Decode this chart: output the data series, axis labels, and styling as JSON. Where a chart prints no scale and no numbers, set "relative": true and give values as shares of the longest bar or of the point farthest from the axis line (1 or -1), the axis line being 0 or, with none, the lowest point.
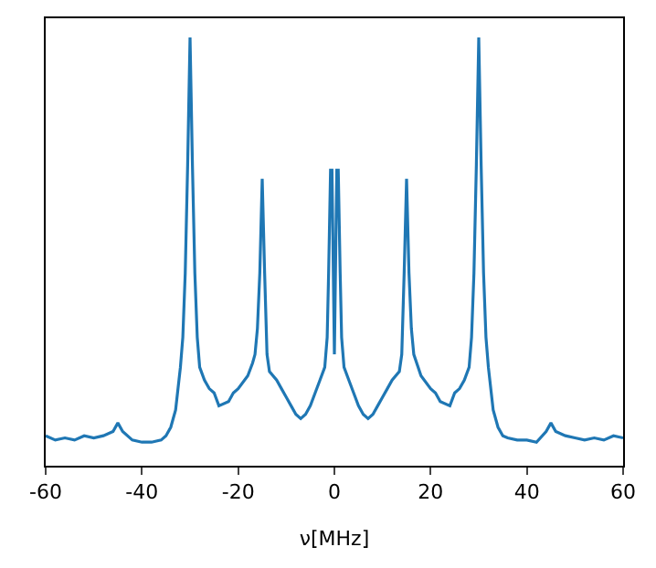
{
  "chart_data": {
    "type": "line",
    "xlabel": "ν[MHz]",
    "relative": true,
    "xlim": [
      -60,
      60
    ],
    "xticks": [
      -60,
      -40,
      -20,
      0,
      20,
      40,
      60
    ],
    "tick_labels": "x",
    "x": [
      -60,
      -58,
      -56,
      -54,
      -52,
      -50,
      -48,
      -46,
      -45,
      -44,
      -42,
      -40,
      -38,
      -36,
      -35,
      -34,
      -33,
      -32,
      -31.5,
      -31,
      -30.5,
      -30,
      -29.5,
      -29,
      -28.5,
      -28,
      -27,
      -26,
      -25,
      -24,
      -22,
      -21,
      -20,
      -18,
      -17,
      -16.5,
      -16,
      -15.5,
      -15,
      -14.5,
      -14,
      -13.5,
      -12,
      -11,
      -10,
      -9,
      -8,
      -7,
      -6,
      -5,
      -4,
      -3,
      -2,
      -1.5,
      -1.2,
      -0.8,
      -0.5,
      0,
      0.5,
      0.8,
      1.2,
      1.5,
      2,
      3,
      4,
      5,
      6,
      7,
      8,
      9,
      10,
      11,
      12,
      13.5,
      14,
      14.5,
      15,
      15.5,
      16,
      16.5,
      18,
      20,
      21,
      22,
      24,
      25,
      26,
      27,
      28,
      28.5,
      29,
      29.5,
      30,
      30.5,
      31,
      31.5,
      32,
      33,
      34,
      35,
      36,
      38,
      40,
      42,
      44,
      45,
      46,
      48,
      50,
      52,
      54,
      56,
      58,
      60
    ],
    "series": [
      {
        "color": "#1f77b4",
        "values": [
          0.07,
          0.06,
          0.065,
          0.06,
          0.07,
          0.065,
          0.07,
          0.08,
          0.1,
          0.08,
          0.06,
          0.055,
          0.055,
          0.06,
          0.07,
          0.09,
          0.13,
          0.23,
          0.3,
          0.45,
          0.7,
          1.0,
          0.7,
          0.45,
          0.3,
          0.23,
          0.2,
          0.18,
          0.17,
          0.14,
          0.15,
          0.17,
          0.18,
          0.21,
          0.24,
          0.26,
          0.32,
          0.45,
          0.67,
          0.45,
          0.26,
          0.22,
          0.2,
          0.18,
          0.16,
          0.14,
          0.12,
          0.11,
          0.12,
          0.14,
          0.17,
          0.2,
          0.23,
          0.3,
          0.45,
          0.69,
          0.69,
          0.26,
          0.69,
          0.69,
          0.45,
          0.3,
          0.23,
          0.2,
          0.17,
          0.14,
          0.12,
          0.11,
          0.12,
          0.14,
          0.16,
          0.18,
          0.2,
          0.22,
          0.26,
          0.45,
          0.67,
          0.45,
          0.32,
          0.26,
          0.21,
          0.18,
          0.17,
          0.15,
          0.14,
          0.17,
          0.18,
          0.2,
          0.23,
          0.3,
          0.45,
          0.7,
          1.0,
          0.7,
          0.45,
          0.3,
          0.23,
          0.13,
          0.09,
          0.07,
          0.065,
          0.06,
          0.06,
          0.055,
          0.08,
          0.1,
          0.08,
          0.07,
          0.065,
          0.06,
          0.065,
          0.06,
          0.07,
          0.065
        ]
      }
    ]
  }
}
